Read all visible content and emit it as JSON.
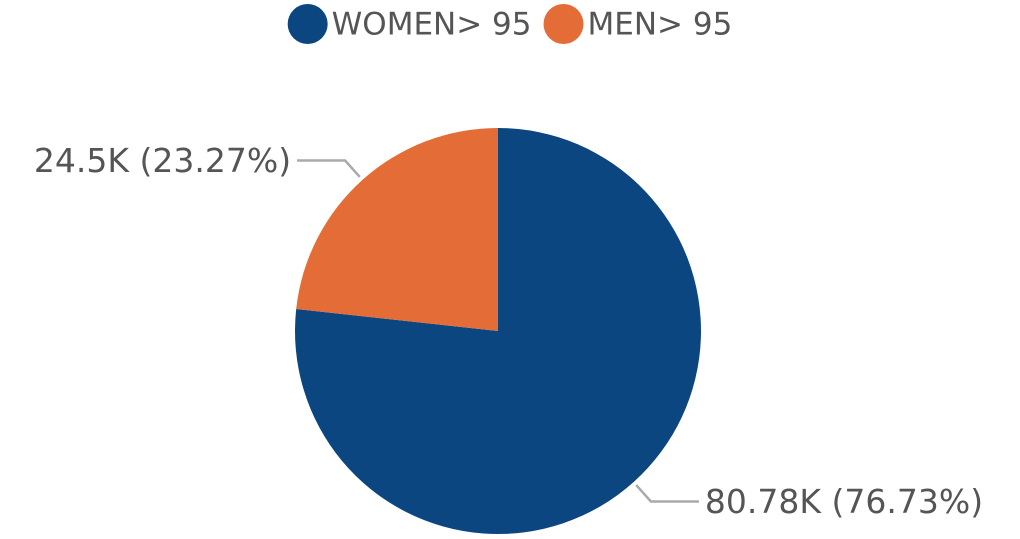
{
  "chart_data": {
    "type": "pie",
    "categories": [
      "WOMEN> 95",
      "MEN> 95"
    ],
    "values": [
      80780,
      24500
    ],
    "value_labels": [
      "80.78K (76.73%)",
      "24.5K (23.27%)"
    ],
    "colors": [
      "#0b4680",
      "#e46c36"
    ]
  }
}
